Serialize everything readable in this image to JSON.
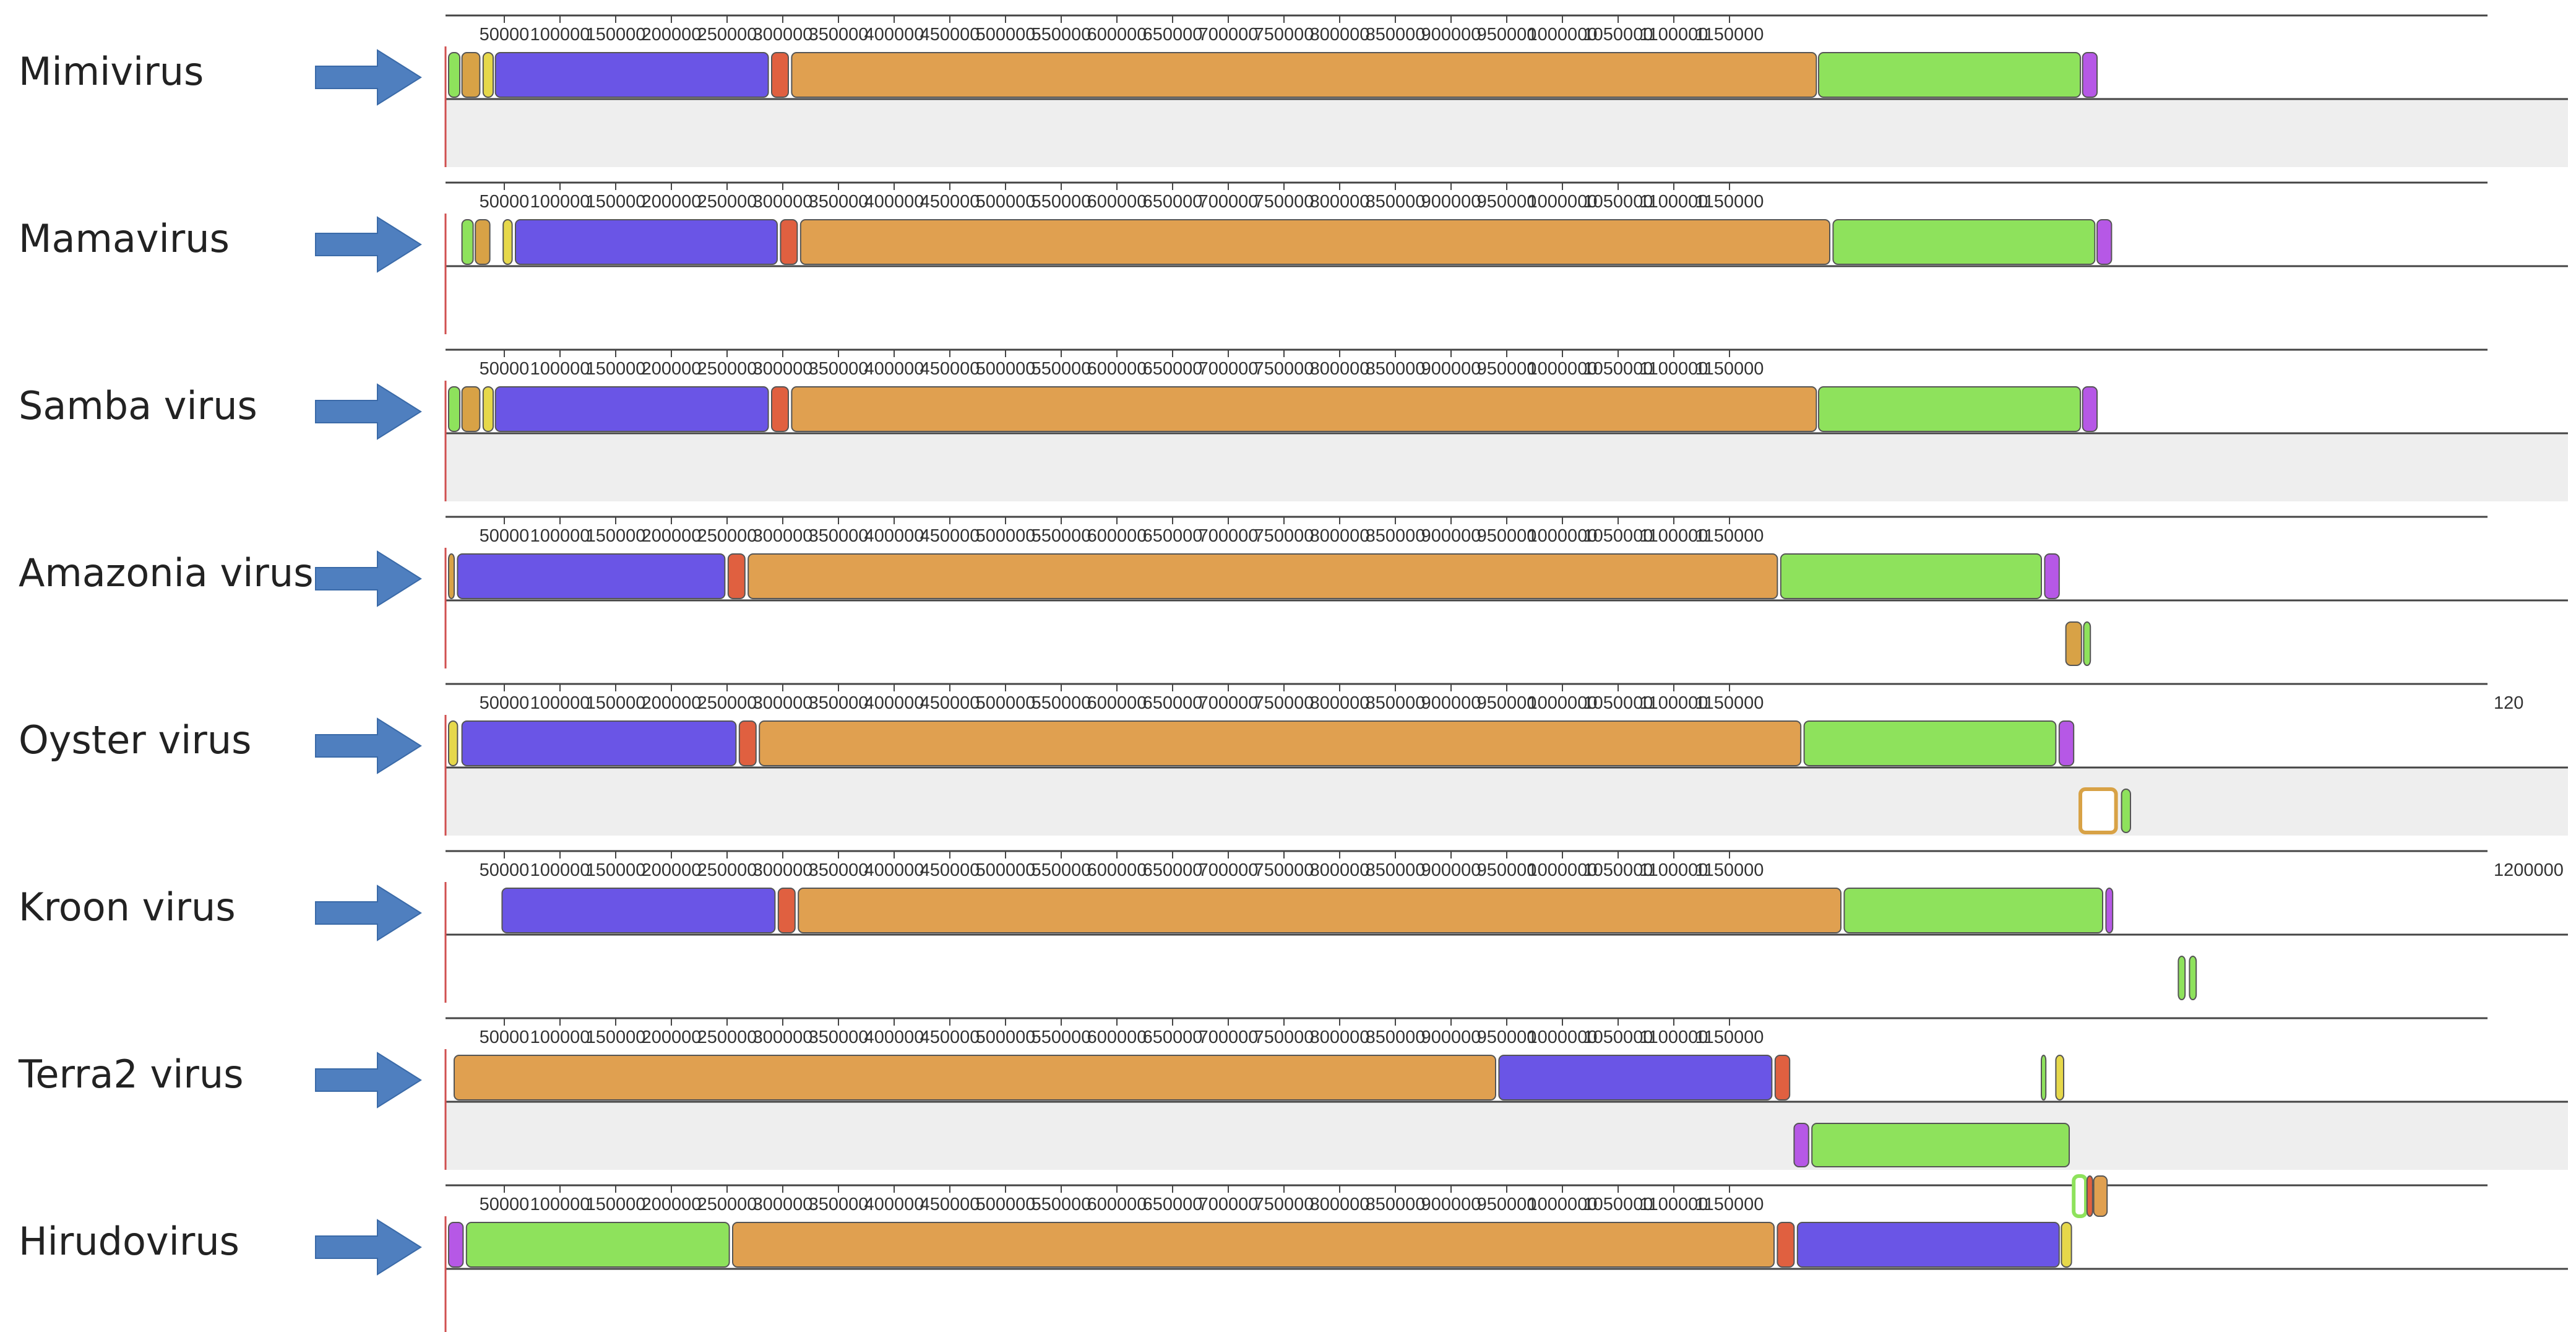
{
  "colors": {
    "purple": "#6a55e6",
    "orange": "#e0a050",
    "green": "#8ee25c",
    "red": "#e06040",
    "magenta": "#b658e6",
    "yellow": "#e6d84a",
    "tan": "#d8a246",
    "arrow": "#4f7fbf",
    "panel": "#eeeeee",
    "line": "#444444"
  },
  "tick_labels": [
    "50000",
    "100000",
    "150000",
    "200000",
    "250000",
    "300000",
    "350000",
    "400000",
    "450000",
    "500000",
    "550000",
    "600000",
    "650000",
    "700000",
    "750000",
    "800000",
    "850000",
    "900000",
    "950000",
    "1000000",
    "1050000",
    "1100000",
    "1150000"
  ],
  "genomes": [
    {
      "name": "Mimivirus",
      "extra_tick": "",
      "grey": true,
      "blocks": [
        {
          "c": "green",
          "s": 0,
          "e": 10000
        },
        {
          "c": "tan",
          "s": 12000,
          "e": 28000
        },
        {
          "c": "yellow",
          "s": 31000,
          "e": 40000
        },
        {
          "c": "purple",
          "s": 42000,
          "e": 287000
        },
        {
          "c": "red",
          "s": 290000,
          "e": 305000
        },
        {
          "c": "orange",
          "s": 308000,
          "e": 1228000
        },
        {
          "c": "green",
          "s": 1230000,
          "e": 1465000
        },
        {
          "c": "magenta",
          "s": 1467000,
          "e": 1480000
        }
      ]
    },
    {
      "name": "Mamavirus",
      "extra_tick": "",
      "grey": false,
      "blocks": [
        {
          "c": "green",
          "s": 12000,
          "e": 22000
        },
        {
          "c": "tan",
          "s": 24000,
          "e": 37000
        },
        {
          "c": "yellow",
          "s": 49000,
          "e": 57000
        },
        {
          "c": "purple",
          "s": 60000,
          "e": 295000
        },
        {
          "c": "red",
          "s": 298000,
          "e": 313000
        },
        {
          "c": "orange",
          "s": 316000,
          "e": 1240000
        },
        {
          "c": "green",
          "s": 1243000,
          "e": 1478000
        },
        {
          "c": "magenta",
          "s": 1480000,
          "e": 1493000
        }
      ]
    },
    {
      "name": "Samba virus",
      "extra_tick": "",
      "grey": true,
      "blocks": [
        {
          "c": "green",
          "s": 0,
          "e": 10000
        },
        {
          "c": "tan",
          "s": 12000,
          "e": 28000
        },
        {
          "c": "yellow",
          "s": 31000,
          "e": 40000
        },
        {
          "c": "purple",
          "s": 42000,
          "e": 287000
        },
        {
          "c": "red",
          "s": 290000,
          "e": 305000
        },
        {
          "c": "orange",
          "s": 308000,
          "e": 1228000
        },
        {
          "c": "green",
          "s": 1230000,
          "e": 1465000
        },
        {
          "c": "magenta",
          "s": 1467000,
          "e": 1480000
        }
      ]
    },
    {
      "name": "Amazonia virus",
      "extra_tick": "",
      "grey": false,
      "blocks": [
        {
          "c": "tan",
          "s": 0,
          "e": 5000
        },
        {
          "c": "purple",
          "s": 8000,
          "e": 248000
        },
        {
          "c": "red",
          "s": 251000,
          "e": 266000
        },
        {
          "c": "orange",
          "s": 269000,
          "e": 1193000
        },
        {
          "c": "green",
          "s": 1196000,
          "e": 1430000
        },
        {
          "c": "magenta",
          "s": 1433000,
          "e": 1446000
        },
        {
          "c": "tan",
          "s": 1452000,
          "e": 1466000,
          "low": true
        },
        {
          "c": "green",
          "s": 1468000,
          "e": 1474000,
          "low": true
        }
      ]
    },
    {
      "name": "Oyster virus",
      "extra_tick": "120",
      "grey": true,
      "blocks": [
        {
          "c": "yellow",
          "s": 0,
          "e": 8000
        },
        {
          "c": "purple",
          "s": 12000,
          "e": 258000
        },
        {
          "c": "red",
          "s": 261000,
          "e": 276000
        },
        {
          "c": "orange",
          "s": 279000,
          "e": 1214000
        },
        {
          "c": "green",
          "s": 1217000,
          "e": 1443000
        },
        {
          "c": "magenta",
          "s": 1446000,
          "e": 1459000
        },
        {
          "c": "tan",
          "s": 1465000,
          "e": 1497000,
          "low": true,
          "hollow": true
        },
        {
          "c": "green",
          "s": 1502000,
          "e": 1510000,
          "low": true
        }
      ]
    },
    {
      "name": "Kroon virus",
      "extra_tick": "1200000",
      "grey": false,
      "blocks": [
        {
          "c": "purple",
          "s": 48000,
          "e": 293000
        },
        {
          "c": "red",
          "s": 296000,
          "e": 311000
        },
        {
          "c": "orange",
          "s": 314000,
          "e": 1250000
        },
        {
          "c": "green",
          "s": 1253000,
          "e": 1485000
        },
        {
          "c": "magenta",
          "s": 1488000,
          "e": 1494000
        },
        {
          "c": "green",
          "s": 1553000,
          "e": 1559000,
          "low": true
        },
        {
          "c": "green",
          "s": 1563000,
          "e": 1569000,
          "low": true
        }
      ]
    },
    {
      "name": "Terra2 virus",
      "extra_tick": "",
      "grey": true,
      "blocks": [
        {
          "c": "orange",
          "s": 5000,
          "e": 940000
        },
        {
          "c": "purple",
          "s": 943000,
          "e": 1188000
        },
        {
          "c": "red",
          "s": 1191000,
          "e": 1204000
        },
        {
          "c": "green",
          "s": 1430000,
          "e": 1434000
        },
        {
          "c": "yellow",
          "s": 1443000,
          "e": 1450000
        },
        {
          "c": "magenta",
          "s": 1208000,
          "e": 1221000,
          "low": true
        },
        {
          "c": "green",
          "s": 1224000,
          "e": 1455000,
          "low": true
        }
      ]
    },
    {
      "name": "Hirudovirus",
      "extra_tick": "",
      "grey": false,
      "blocks": [
        {
          "c": "magenta",
          "s": 0,
          "e": 13000
        },
        {
          "c": "green",
          "s": 16000,
          "e": 252000
        },
        {
          "c": "orange",
          "s": 255000,
          "e": 1190000
        },
        {
          "c": "red",
          "s": 1193000,
          "e": 1208000
        },
        {
          "c": "purple",
          "s": 1211000,
          "e": 1446000
        },
        {
          "c": "yellow",
          "s": 1448000,
          "e": 1457000
        },
        {
          "c": "green",
          "s": 1459000,
          "e": 1470000,
          "high": true,
          "hollow": true
        },
        {
          "c": "red",
          "s": 1471000,
          "e": 1476000,
          "high": true
        },
        {
          "c": "orange",
          "s": 1477000,
          "e": 1489000,
          "high": true
        }
      ]
    }
  ]
}
